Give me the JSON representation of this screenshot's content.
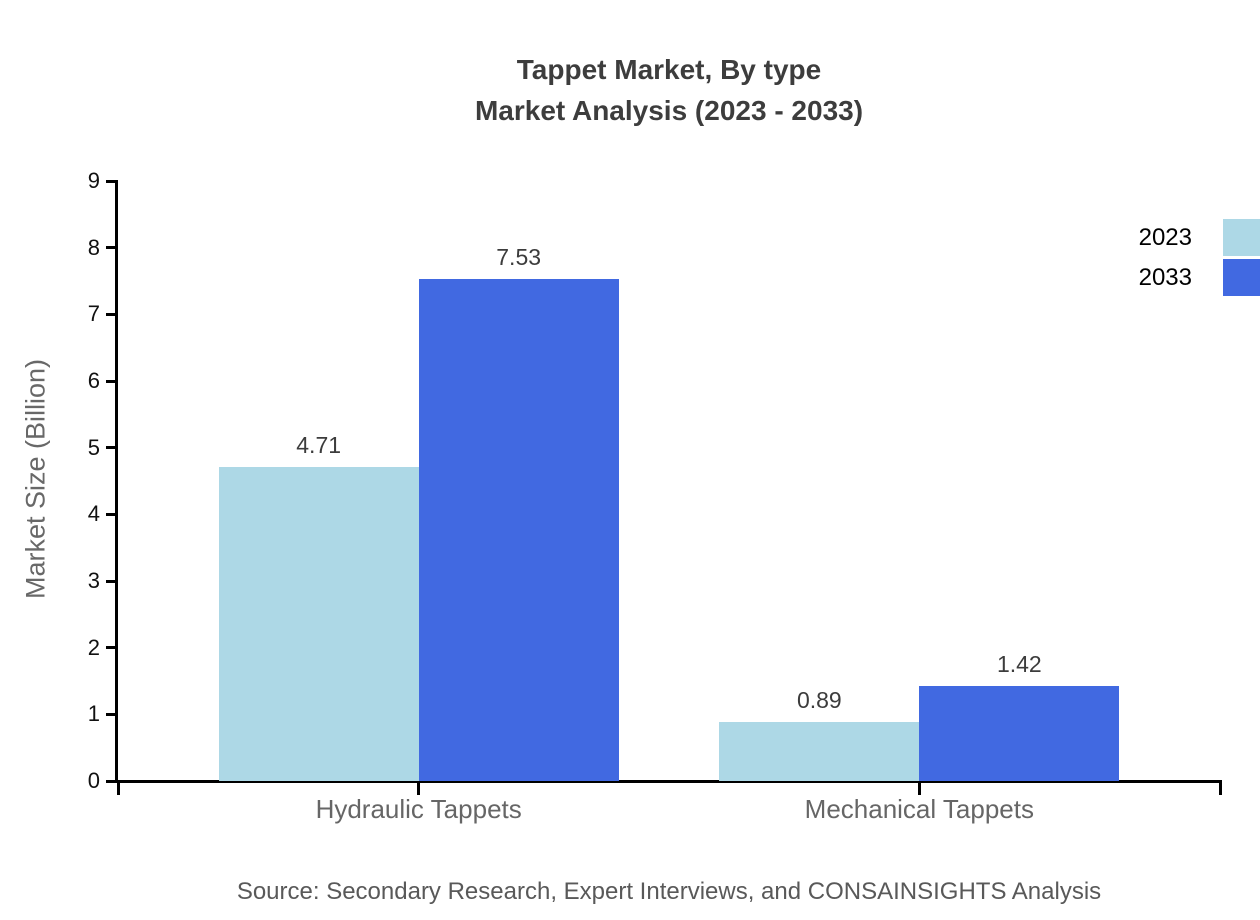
{
  "title": {
    "line1": "Tappet Market, By type",
    "line2": "Market Analysis (2023 - 2033)"
  },
  "y_axis": {
    "label": "Market Size (Billion)"
  },
  "legend": {
    "position": "top-right",
    "items": [
      {
        "label": "2023",
        "color": "#ADD8E6"
      },
      {
        "label": "2033",
        "color": "#4169E1"
      }
    ]
  },
  "source_note": "Source: Secondary Research, Expert Interviews, and CONSAINSIGHTS Analysis",
  "colors": {
    "series_2023": "#ADD8E6",
    "series_2033": "#4169E1",
    "axis": "#000000",
    "title_text": "#3d3d3d",
    "muted_text": "#666666"
  },
  "chart_data": {
    "type": "bar",
    "title": "Tappet Market, By type Market Analysis (2023 - 2033)",
    "categories": [
      "Hydraulic Tappets",
      "Mechanical Tappets"
    ],
    "series": [
      {
        "name": "2023",
        "color": "#ADD8E6",
        "values": [
          4.71,
          0.89
        ]
      },
      {
        "name": "2033",
        "color": "#4169E1",
        "values": [
          7.53,
          1.42
        ]
      }
    ],
    "value_label_format": "0.00",
    "xlabel": "",
    "ylabel": "Market Size (Billion)",
    "ylim": [
      0,
      9
    ],
    "y_ticks": [
      0,
      1,
      2,
      3,
      4,
      5,
      6,
      7,
      8,
      9
    ],
    "grid": false,
    "legend_position": "top-right"
  }
}
